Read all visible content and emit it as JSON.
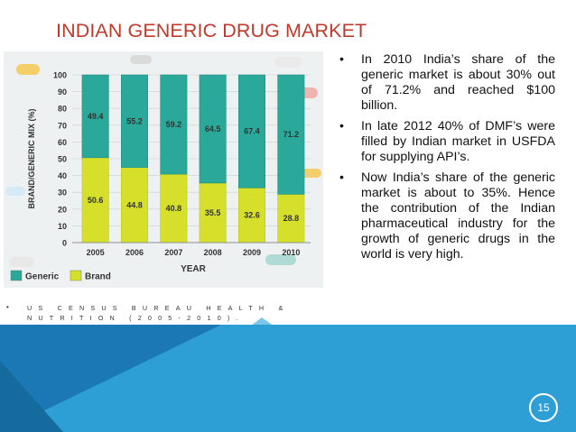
{
  "slide": {
    "title": "INDIAN GENERIC DRUG MARKET",
    "bullets": [
      "In 2010 India’s share of the generic market is about 30% out of 71.2% and reached $100 billion.",
      "In late 2012 40% of DMF’s were filled by Indian market in USFDA for supplying API’s.",
      "Now India’s share of the generic market is about to 35%. Hence the contribution of the Indian pharmaceutical industry for the growth of generic drugs in the world is very high."
    ],
    "bullet_marker": "•",
    "source": "US Census Bureau Health & Nutrition (2005-2010).",
    "page_number": "15",
    "colors": {
      "title": "#c0392b",
      "blue_primary": "#2e9fd4",
      "blue_dark": "#1b78b4",
      "blue_light": "#7cc6ea",
      "generic_bar": "#2aa99a",
      "brand_bar": "#d6e02a"
    }
  },
  "chart_data": {
    "type": "bar",
    "stacked": true,
    "categories": [
      "2005",
      "2006",
      "2007",
      "2008",
      "2009",
      "2010"
    ],
    "series": [
      {
        "name": "Brand",
        "values": [
          50.6,
          44.8,
          40.8,
          35.5,
          32.6,
          28.8
        ],
        "color": "#d6e02a"
      },
      {
        "name": "Generic",
        "values": [
          49.4,
          55.2,
          59.2,
          64.5,
          67.4,
          71.2
        ],
        "color": "#2aa99a"
      }
    ],
    "xlabel": "YEAR",
    "ylabel": "BRAND/GENERIC MIX (%)",
    "ylim": [
      0,
      100
    ],
    "yticks": [
      0,
      10,
      20,
      30,
      40,
      50,
      60,
      70,
      80,
      90,
      100
    ],
    "legend_position": "bottom-left",
    "legend": [
      "Generic",
      "Brand"
    ],
    "data_labels": true
  }
}
